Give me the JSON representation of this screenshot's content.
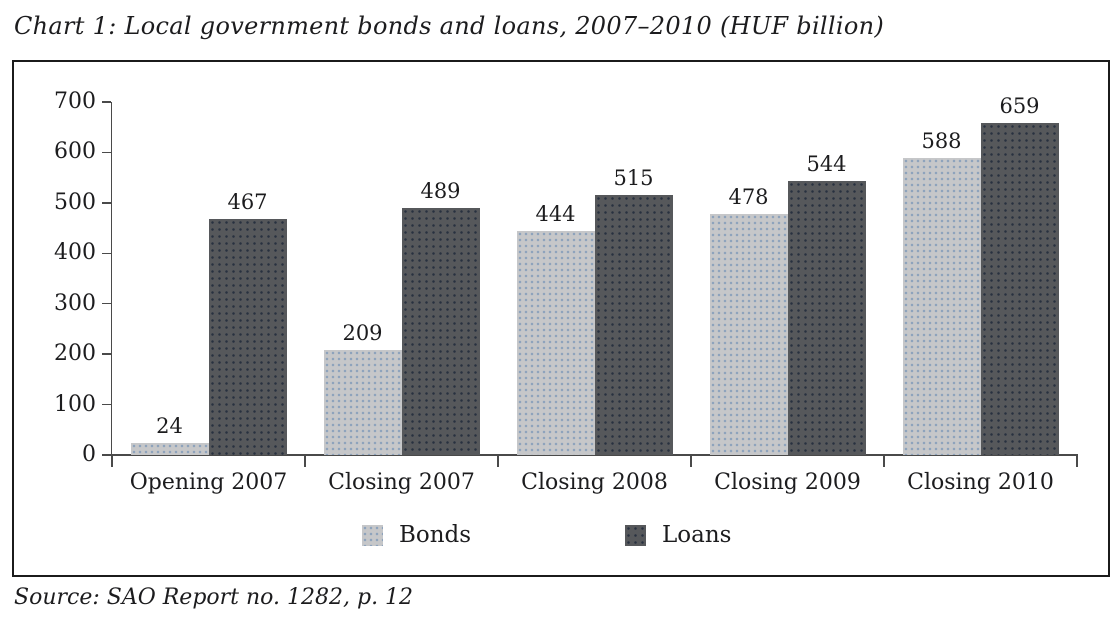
{
  "page": {
    "title": "Chart 1: Local government bonds and loans, 2007–2010 (HUF billion)",
    "source": "Source: SAO Report no. 1282, p. 12"
  },
  "chart_data": {
    "type": "bar",
    "title": "Chart 1: Local government bonds and loans, 2007–2010 (HUF billion)",
    "source": "Source: SAO Report no. 1282, p. 12",
    "categories": [
      "Opening 2007",
      "Closing 2007",
      "Closing 2008",
      "Closing 2009",
      "Closing 2010"
    ],
    "series": [
      {
        "name": "Bonds",
        "values": [
          24,
          209,
          444,
          478,
          588
        ],
        "color": "#c6c7c9"
      },
      {
        "name": "Loans",
        "values": [
          467,
          489,
          515,
          544,
          659
        ],
        "color": "#56585b"
      }
    ],
    "ylim": [
      0,
      700
    ],
    "yticks": [
      0,
      100,
      200,
      300,
      400,
      500,
      600,
      700
    ],
    "xlabel": "",
    "ylabel": "",
    "grid": false,
    "legend_position": "bottom",
    "value_labels": true,
    "axis_color": "#4a4a4a",
    "text_color": "#1c1c1e"
  }
}
